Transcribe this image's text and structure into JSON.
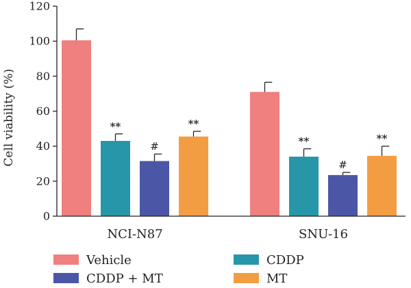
{
  "chart_data": {
    "type": "bar",
    "title": "",
    "ylabel": "Cell viability (%)",
    "xlabel": "",
    "ylim": [
      0,
      120
    ],
    "yticks": [
      0,
      20,
      40,
      60,
      80,
      100,
      120
    ],
    "categories": [
      "NCI-N87",
      "SNU-16"
    ],
    "series": [
      {
        "name": "Vehicle",
        "color": "#f07f7f",
        "values": [
          100.5,
          71
        ],
        "errors": [
          6.5,
          5.5
        ],
        "annotations": [
          "",
          ""
        ]
      },
      {
        "name": "CDDP",
        "color": "#2796a8",
        "values": [
          43,
          34
        ],
        "errors": [
          4,
          4.5
        ],
        "annotations": [
          "**",
          "**"
        ]
      },
      {
        "name": "CDDP + MT",
        "color": "#4b57a6",
        "values": [
          31.5,
          23.5
        ],
        "errors": [
          4,
          1.5
        ],
        "annotations": [
          "#",
          "#"
        ]
      },
      {
        "name": "MT",
        "color": "#f39d42",
        "values": [
          45.5,
          34.5
        ],
        "errors": [
          3,
          5.5
        ],
        "annotations": [
          "**",
          "**"
        ]
      }
    ],
    "legend": {
      "position": "bottom",
      "columns": 2
    }
  }
}
